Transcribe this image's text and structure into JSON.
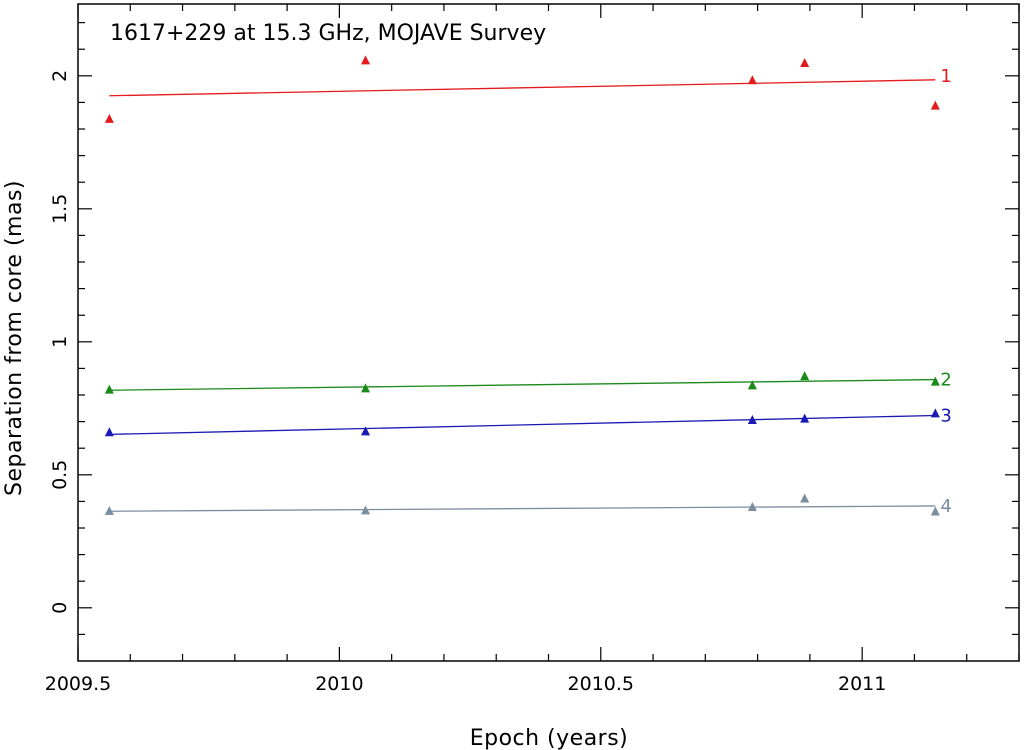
{
  "chart_data": {
    "type": "scatter",
    "title": "1617+229 at 15.3 GHz, MOJAVE Survey",
    "xlabel": "Epoch (years)",
    "ylabel": "Separation from core (mas)",
    "xlim": [
      2009.5,
      2011.3
    ],
    "ylim": [
      -0.2,
      2.27
    ],
    "x_ticks": [
      {
        "value": 2009.5,
        "label": "2009.5"
      },
      {
        "value": 2010.0,
        "label": "2010"
      },
      {
        "value": 2010.5,
        "label": "2010.5"
      },
      {
        "value": 2011.0,
        "label": "2011"
      }
    ],
    "y_ticks": [
      {
        "value": 0,
        "label": "0"
      },
      {
        "value": 0.5,
        "label": "0.5"
      },
      {
        "value": 1.0,
        "label": "1"
      },
      {
        "value": 1.5,
        "label": "1.5"
      },
      {
        "value": 2.0,
        "label": "2"
      }
    ],
    "series": [
      {
        "name": "1",
        "color": "#e41a1c",
        "marker": "triangle",
        "x": [
          2009.56,
          2010.05,
          2010.79,
          2010.89,
          2011.14
        ],
        "values": [
          1.84,
          2.06,
          1.985,
          2.05,
          1.89
        ],
        "fit": {
          "x": [
            2009.56,
            2011.14
          ],
          "y": [
            1.925,
            1.985
          ]
        }
      },
      {
        "name": "2",
        "color": "#1a8a1a",
        "marker": "triangle",
        "x": [
          2009.56,
          2010.05,
          2010.79,
          2010.89,
          2011.14
        ],
        "values": [
          0.822,
          0.827,
          0.838,
          0.873,
          0.852
        ],
        "fit": {
          "x": [
            2009.56,
            2011.14
          ],
          "y": [
            0.818,
            0.858
          ]
        }
      },
      {
        "name": "3",
        "color": "#1a1ab4",
        "marker": "triangle",
        "x": [
          2009.56,
          2010.05,
          2010.79,
          2010.89,
          2011.14
        ],
        "values": [
          0.662,
          0.665,
          0.708,
          0.713,
          0.733
        ],
        "fit": {
          "x": [
            2009.56,
            2011.14
          ],
          "y": [
            0.652,
            0.723
          ]
        }
      },
      {
        "name": "4",
        "color": "#7a8ea0",
        "marker": "triangle",
        "x": [
          2009.56,
          2010.05,
          2010.79,
          2010.89,
          2011.14
        ],
        "values": [
          0.366,
          0.368,
          0.381,
          0.413,
          0.364
        ],
        "fit": {
          "x": [
            2009.56,
            2011.14
          ],
          "y": [
            0.363,
            0.383
          ]
        }
      }
    ]
  }
}
